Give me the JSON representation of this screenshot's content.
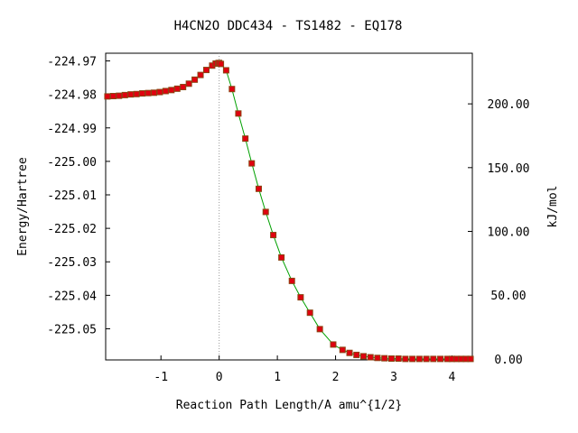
{
  "chart_data": {
    "type": "line",
    "title": "H4CN2O   DDC434 - TS1482 - EQ178",
    "xlabel": "Reaction Path Length/A amu^{1/2}",
    "ylabel": "Energy/Hartree",
    "ylabel_right": "kJ/mol",
    "xlim": [
      -1.95,
      4.35
    ],
    "ylim": [
      -225.0593,
      -224.9677
    ],
    "x_ticks": [
      -1,
      0,
      1,
      2,
      3,
      4
    ],
    "x_tick_labels": [
      "-1",
      "0",
      "1",
      "2",
      "3",
      "4"
    ],
    "y_ticks": [
      -224.97,
      -224.98,
      -224.99,
      -225.0,
      -225.01,
      -225.02,
      -225.03,
      -225.04,
      -225.05
    ],
    "y_tick_labels": [
      "-224.97",
      "-224.98",
      "-224.99",
      "-225.00",
      "-225.01",
      "-225.02",
      "-225.03",
      "-225.04",
      "-225.05"
    ],
    "y2_ticks": [
      0,
      50,
      100,
      150,
      200
    ],
    "y2_tick_labels": [
      "0.00",
      "50.00",
      "100.00",
      "150.00",
      "200.00"
    ],
    "y2_zero_hartree": -225.059,
    "ts_marker_x": 0,
    "line_color": "#00a000",
    "marker_color": "#e0000f",
    "marker_stroke": "#8b4513",
    "guide_color": "#999999",
    "series": [
      {
        "x": [
          -1.92,
          -1.82,
          -1.72,
          -1.62,
          -1.52,
          -1.42,
          -1.32,
          -1.22,
          -1.12,
          -1.02,
          -0.92,
          -0.82,
          -0.72,
          -0.62,
          -0.52,
          -0.42,
          -0.32,
          -0.22,
          -0.12,
          -0.06,
          -0.02,
          0.0,
          0.03,
          0.12,
          0.22,
          0.33,
          0.45,
          0.56,
          0.68,
          0.8,
          0.93,
          1.07,
          1.25,
          1.4,
          1.56,
          1.73,
          1.96,
          2.12,
          2.24,
          2.36,
          2.48,
          2.6,
          2.72,
          2.84,
          2.96,
          3.08,
          3.2,
          3.32,
          3.44,
          3.56,
          3.68,
          3.8,
          3.92,
          4.0,
          4.08,
          4.16,
          4.24,
          4.32
        ],
        "y": [
          -224.9806,
          -224.9805,
          -224.9804,
          -224.9802,
          -224.98,
          -224.9799,
          -224.9797,
          -224.9796,
          -224.9795,
          -224.9793,
          -224.979,
          -224.9787,
          -224.9783,
          -224.9778,
          -224.9768,
          -224.9756,
          -224.9742,
          -224.9727,
          -224.9714,
          -224.9708,
          -224.9707,
          -224.9706,
          -224.9709,
          -224.9728,
          -224.9784,
          -224.9857,
          -224.9932,
          -225.0006,
          -225.0082,
          -225.0151,
          -225.022,
          -225.0287,
          -225.0357,
          -225.0406,
          -225.0452,
          -225.0501,
          -225.0547,
          -225.0563,
          -225.0572,
          -225.0578,
          -225.0582,
          -225.0585,
          -225.0587,
          -225.0588,
          -225.0589,
          -225.0589,
          -225.059,
          -225.059,
          -225.059,
          -225.059,
          -225.059,
          -225.059,
          -225.059,
          -225.059,
          -225.059,
          -225.059,
          -225.059,
          -225.059
        ]
      }
    ]
  }
}
